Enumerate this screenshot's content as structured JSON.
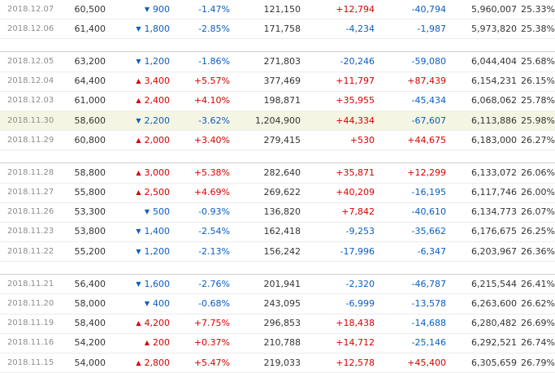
{
  "colors": {
    "up": "#d60000",
    "down": "#0a5dc2",
    "highlight_row": "#f5f5e4"
  },
  "icons": {
    "up": "triangle-up-icon",
    "down": "triangle-down-icon"
  },
  "rows": [
    {
      "date": "2018.12.07",
      "close": "60,500",
      "dir": "down",
      "change": "900",
      "rate": "-1.47%",
      "volume": "121,150",
      "inst": "+12,794",
      "foreign": "-40,794",
      "holdings": "5,960,007",
      "ratio": "25.33%"
    },
    {
      "date": "2018.12.06",
      "close": "61,400",
      "dir": "down",
      "change": "1,800",
      "rate": "-2.85%",
      "volume": "171,758",
      "inst": "-4,234",
      "foreign": "-1,987",
      "holdings": "5,973,820",
      "ratio": "25.38%"
    },
    {
      "spacer": true
    },
    {
      "date": "2018.12.05",
      "close": "63,200",
      "dir": "down",
      "change": "1,200",
      "rate": "-1.86%",
      "volume": "271,803",
      "inst": "-20,246",
      "foreign": "-59,080",
      "holdings": "6,044,404",
      "ratio": "25.68%"
    },
    {
      "date": "2018.12.04",
      "close": "64,400",
      "dir": "up",
      "change": "3,400",
      "rate": "+5.57%",
      "volume": "377,469",
      "inst": "+11,797",
      "foreign": "+87,439",
      "holdings": "6,154,231",
      "ratio": "26.15%"
    },
    {
      "date": "2018.12.03",
      "close": "61,000",
      "dir": "up",
      "change": "2,400",
      "rate": "+4.10%",
      "volume": "198,871",
      "inst": "+35,955",
      "foreign": "-45,434",
      "holdings": "6,068,062",
      "ratio": "25.78%"
    },
    {
      "date": "2018.11.30",
      "close": "58,600",
      "dir": "down",
      "change": "2,200",
      "rate": "-3.62%",
      "volume": "1,204,900",
      "inst": "+44,334",
      "foreign": "-67,607",
      "holdings": "6,113,886",
      "ratio": "25.98%",
      "highlight": true
    },
    {
      "date": "2018.11.29",
      "close": "60,800",
      "dir": "up",
      "change": "2,000",
      "rate": "+3.40%",
      "volume": "279,415",
      "inst": "+530",
      "foreign": "+44,675",
      "holdings": "6,183,000",
      "ratio": "26.27%"
    },
    {
      "spacer": true
    },
    {
      "date": "2018.11.28",
      "close": "58,800",
      "dir": "up",
      "change": "3,000",
      "rate": "+5.38%",
      "volume": "282,640",
      "inst": "+35,871",
      "foreign": "+12,299",
      "holdings": "6,133,072",
      "ratio": "26.06%"
    },
    {
      "date": "2018.11.27",
      "close": "55,800",
      "dir": "up",
      "change": "2,500",
      "rate": "+4.69%",
      "volume": "269,622",
      "inst": "+40,209",
      "foreign": "-16,195",
      "holdings": "6,117,746",
      "ratio": "26.00%"
    },
    {
      "date": "2018.11.26",
      "close": "53,300",
      "dir": "down",
      "change": "500",
      "rate": "-0.93%",
      "volume": "136,820",
      "inst": "+7,842",
      "foreign": "-40,610",
      "holdings": "6,134,773",
      "ratio": "26.07%"
    },
    {
      "date": "2018.11.23",
      "close": "53,800",
      "dir": "down",
      "change": "1,400",
      "rate": "-2.54%",
      "volume": "162,418",
      "inst": "-9,253",
      "foreign": "-35,662",
      "holdings": "6,176,675",
      "ratio": "26.25%"
    },
    {
      "date": "2018.11.22",
      "close": "55,200",
      "dir": "down",
      "change": "1,200",
      "rate": "-2.13%",
      "volume": "156,242",
      "inst": "-17,996",
      "foreign": "-6,347",
      "holdings": "6,203,967",
      "ratio": "26.36%"
    },
    {
      "spacer": true
    },
    {
      "date": "2018.11.21",
      "close": "56,400",
      "dir": "down",
      "change": "1,600",
      "rate": "-2.76%",
      "volume": "201,941",
      "inst": "-2,320",
      "foreign": "-46,787",
      "holdings": "6,215,544",
      "ratio": "26.41%"
    },
    {
      "date": "2018.11.20",
      "close": "58,000",
      "dir": "down",
      "change": "400",
      "rate": "-0.68%",
      "volume": "243,095",
      "inst": "-6,999",
      "foreign": "-13,578",
      "holdings": "6,263,600",
      "ratio": "26.62%"
    },
    {
      "date": "2018.11.19",
      "close": "58,400",
      "dir": "up",
      "change": "4,200",
      "rate": "+7.75%",
      "volume": "296,853",
      "inst": "+18,438",
      "foreign": "-14,688",
      "holdings": "6,280,482",
      "ratio": "26.69%"
    },
    {
      "date": "2018.11.16",
      "close": "54,200",
      "dir": "up",
      "change": "200",
      "rate": "+0.37%",
      "volume": "210,788",
      "inst": "+14,712",
      "foreign": "-25,146",
      "holdings": "6,292,521",
      "ratio": "26.74%"
    },
    {
      "date": "2018.11.15",
      "close": "54,000",
      "dir": "up",
      "change": "2,800",
      "rate": "+5.47%",
      "volume": "219,033",
      "inst": "+12,578",
      "foreign": "+45,400",
      "holdings": "6,305,659",
      "ratio": "26.79%"
    }
  ]
}
